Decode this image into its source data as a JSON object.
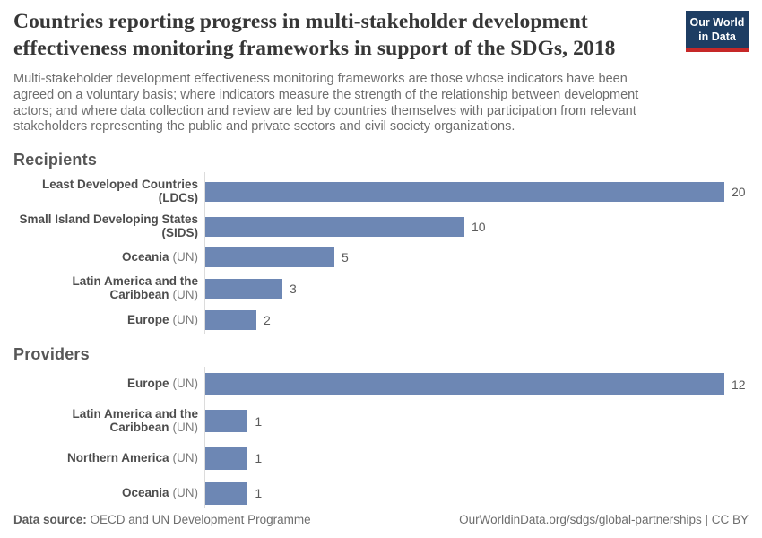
{
  "header": {
    "title": "Countries reporting progress in multi-stakeholder development effectiveness monitoring frameworks in support of the SDGs, 2018",
    "subtitle": "Multi-stakeholder development effectiveness monitoring frameworks are those whose indicators have been agreed on a voluntary basis; where indicators measure the strength of the relationship between development actors; and where data collection and review are led by countries themselves with participation from relevant stakeholders representing the public and private sectors and civil society organizations.",
    "logo": {
      "line1": "Our World",
      "line2": "in Data"
    }
  },
  "chart_data": [
    {
      "type": "bar",
      "orientation": "horizontal",
      "title": "Recipients",
      "categories": [
        "Least Developed Countries (LDCs)",
        "Small Island Developing States (SIDS)",
        "Oceania (UN)",
        "Latin America and the Caribbean (UN)",
        "Europe (UN)"
      ],
      "label_qualifiers": [
        "",
        "",
        "(UN)",
        "(UN)",
        "(UN)"
      ],
      "values": [
        20,
        10,
        5,
        3,
        2
      ],
      "xlim": [
        0,
        20
      ],
      "grid": false,
      "legend": "none",
      "value_labels_shown": true
    },
    {
      "type": "bar",
      "orientation": "horizontal",
      "title": "Providers",
      "categories": [
        "Europe (UN)",
        "Latin America and the Caribbean (UN)",
        "Northern America (UN)",
        "Oceania (UN)"
      ],
      "label_qualifiers": [
        "(UN)",
        "(UN)",
        "(UN)",
        "(UN)"
      ],
      "values": [
        12,
        1,
        1,
        1
      ],
      "xlim": [
        0,
        12
      ],
      "grid": false,
      "legend": "none",
      "value_labels_shown": true
    }
  ],
  "colors": {
    "bar": "#6d87b4",
    "logo_background": "#1d3d63",
    "logo_accent": "#c62828",
    "axis_line": "#dcdcdc"
  },
  "footer": {
    "source_label": "Data source:",
    "source_value": "OECD and UN Development Programme",
    "credit": "OurWorldinData.org/sdgs/global-partnerships | CC BY"
  }
}
